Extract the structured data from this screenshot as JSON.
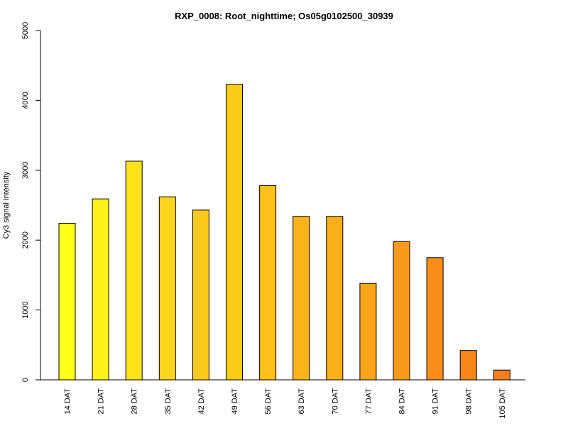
{
  "chart_data": {
    "type": "bar",
    "title": "RXP_0008: Root_nighttime; Os05g0102500_30939",
    "xlabel": "",
    "ylabel": "Cy3 signal intensity",
    "ylim": [
      0,
      5000
    ],
    "yticks": [
      "0",
      "1000",
      "2000",
      "3000",
      "4000",
      "5000"
    ],
    "grid": false,
    "categories": [
      "14 DAT",
      "21 DAT",
      "28 DAT",
      "35 DAT",
      "42 DAT",
      "49 DAT",
      "56 DAT",
      "63 DAT",
      "70 DAT",
      "77 DAT",
      "84 DAT",
      "91 DAT",
      "98 DAT",
      "105 DAT"
    ],
    "values": [
      2240,
      2590,
      3130,
      2620,
      2430,
      4230,
      2780,
      2340,
      2340,
      1380,
      1980,
      1750,
      420,
      140
    ],
    "colors": [
      "#FFFF19",
      "#FEF11A",
      "#FEE31A",
      "#FDD51A",
      "#FCC91A",
      "#FCCC1A",
      "#FCC11A",
      "#FBB41A",
      "#FBB01A",
      "#FAA51A",
      "#F9991A",
      "#F98D1A",
      "#F8861A",
      "#F77F1A"
    ],
    "bar_border_color": "#000000"
  }
}
